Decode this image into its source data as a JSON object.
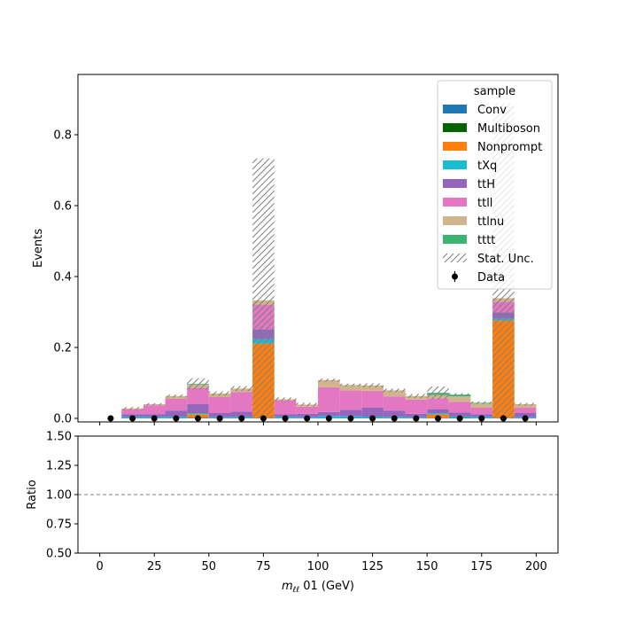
{
  "chart_data": [
    {
      "type": "bar",
      "stacked": true,
      "ylabel": "Events",
      "xlim": [
        -10,
        210
      ],
      "ylim": [
        -0.01,
        0.97
      ],
      "yticks": [
        0.0,
        0.2,
        0.4,
        0.6,
        0.8
      ],
      "ytick_labels": [
        "0.0",
        "0.2",
        "0.4",
        "0.6",
        "0.8"
      ],
      "bin_edges": [
        0,
        10,
        20,
        30,
        40,
        50,
        60,
        70,
        80,
        90,
        100,
        110,
        120,
        130,
        140,
        150,
        160,
        170,
        180,
        190,
        200
      ],
      "series": [
        {
          "name": "Conv",
          "color": "#1f77b4",
          "values": [
            0,
            0.001,
            0.001,
            0.001,
            0.002,
            0.001,
            0.001,
            0.001,
            0.001,
            0.001,
            0.001,
            0.002,
            0.002,
            0.001,
            0.001,
            0.001,
            0.001,
            0.001,
            0.001,
            0.001
          ]
        },
        {
          "name": "Multiboson",
          "color": "#006400",
          "values": [
            0,
            0,
            0,
            0,
            0,
            0,
            0,
            0,
            0,
            0,
            0,
            0,
            0,
            0,
            0,
            0,
            0.001,
            0,
            0,
            0
          ]
        },
        {
          "name": "Nonprompt",
          "color": "#ff7f0e",
          "values": [
            0,
            0,
            0,
            0,
            0.01,
            0,
            0,
            0.21,
            0,
            0,
            0,
            0,
            0,
            0,
            0,
            0.01,
            0,
            0,
            0.275,
            0
          ]
        },
        {
          "name": "tXq",
          "color": "#17becf",
          "values": [
            0,
            0.003,
            0.003,
            0.003,
            0.003,
            0.002,
            0.003,
            0.012,
            0.003,
            0.002,
            0.005,
            0.004,
            0.003,
            0.003,
            0.002,
            0.003,
            0.003,
            0.003,
            0.005,
            0.002
          ]
        },
        {
          "name": "ttH",
          "color": "#9467bd",
          "values": [
            0,
            0.008,
            0.008,
            0.018,
            0.025,
            0.012,
            0.015,
            0.028,
            0.008,
            0.01,
            0.012,
            0.018,
            0.025,
            0.018,
            0.01,
            0.012,
            0.012,
            0.008,
            0.018,
            0.012
          ]
        },
        {
          "name": "ttll",
          "color": "#e377c2",
          "values": [
            0,
            0.013,
            0.025,
            0.033,
            0.045,
            0.045,
            0.055,
            0.07,
            0.038,
            0.02,
            0.07,
            0.055,
            0.048,
            0.04,
            0.04,
            0.03,
            0.03,
            0.018,
            0.03,
            0.015
          ]
        },
        {
          "name": "ttlnu",
          "color": "#d2b48c",
          "values": [
            0,
            0.003,
            0.003,
            0.008,
            0.01,
            0.01,
            0.01,
            0.012,
            0.004,
            0.006,
            0.02,
            0.015,
            0.015,
            0.017,
            0.01,
            0.01,
            0.015,
            0.012,
            0.01,
            0.01
          ]
        },
        {
          "name": "tttt",
          "color": "#3cb371",
          "values": [
            0,
            0,
            0,
            0,
            0.002,
            0,
            0,
            0,
            0,
            0,
            0,
            0,
            0,
            0,
            0,
            0.006,
            0.005,
            0.002,
            0,
            0
          ]
        }
      ],
      "stat_unc": {
        "name": "Stat. Unc.",
        "half_width": [
          0,
          0.004,
          0.003,
          0.004,
          0.016,
          0.006,
          0.007,
          0.4,
          0.005,
          0.005,
          0.004,
          0.004,
          0.006,
          0.005,
          0.006,
          0.018,
          0.004,
          0.004,
          0.55,
          0.004
        ]
      },
      "data": {
        "name": "Data",
        "x": [
          5,
          15,
          25,
          35,
          45,
          55,
          65,
          75,
          85,
          95,
          105,
          115,
          125,
          135,
          145,
          155,
          165,
          175,
          185,
          195
        ],
        "y": [
          0,
          0,
          0,
          0,
          0,
          0,
          0,
          0,
          0,
          0,
          0,
          0,
          0,
          0,
          0,
          0,
          0,
          0,
          0,
          0
        ]
      },
      "legend": {
        "title": "sample",
        "placement": "upper right"
      }
    },
    {
      "type": "line",
      "ylabel": "Ratio",
      "xlabel_main": "m",
      "xlabel_sub": "ℓℓ",
      "xlabel_rest": " 01 (GeV)",
      "xlim": [
        -10,
        210
      ],
      "ylim": [
        0.5,
        1.5
      ],
      "xticks": [
        0,
        25,
        50,
        75,
        100,
        125,
        150,
        175,
        200
      ],
      "xtick_labels": [
        "0",
        "25",
        "50",
        "75",
        "100",
        "125",
        "150",
        "175",
        "200"
      ],
      "yticks": [
        0.5,
        0.75,
        1.0,
        1.25,
        1.5
      ],
      "ytick_labels": [
        "0.50",
        "0.75",
        "1.00",
        "1.25",
        "1.50"
      ],
      "reference_line": 1.0
    }
  ]
}
